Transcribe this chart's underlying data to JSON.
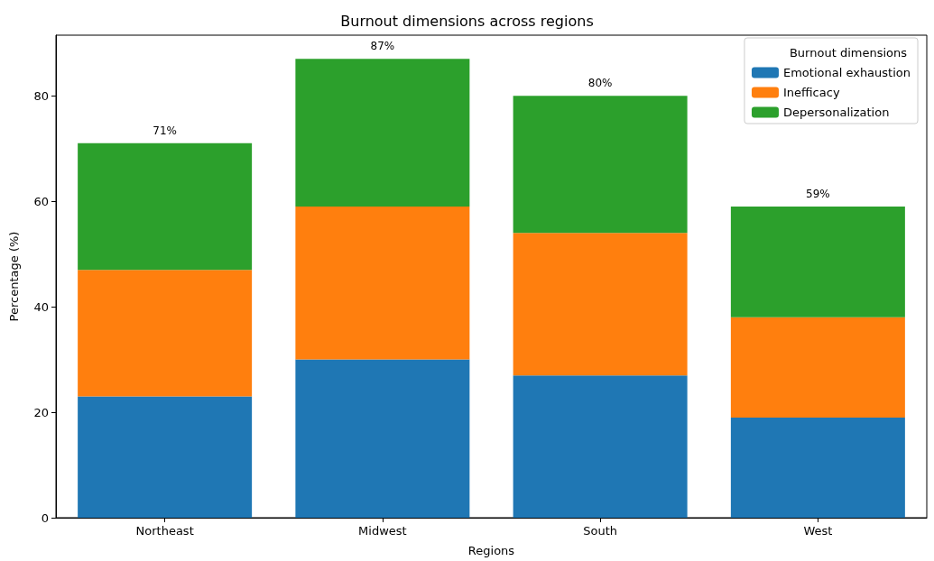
{
  "chart_data": {
    "type": "bar",
    "title": "Burnout dimensions across regions",
    "xlabel": "Regions",
    "ylabel": "Percentage (%)",
    "legend_title": "Burnout dimensions",
    "categories": [
      "Northeast",
      "Midwest",
      "South",
      "West"
    ],
    "series": [
      {
        "name": "Emotional exhaustion",
        "color": "#1f77b4",
        "values": [
          23,
          30,
          27,
          19
        ]
      },
      {
        "name": "Inefficacy",
        "color": "#ff7f0e",
        "values": [
          24,
          29,
          27,
          19
        ]
      },
      {
        "name": "Depersonalization",
        "color": "#2ca02c",
        "values": [
          24,
          28,
          26,
          21
        ]
      }
    ],
    "stacked": true,
    "totals": [
      "71%",
      "87%",
      "80%",
      "59%"
    ],
    "ylim": [
      0,
      91.5
    ],
    "yticks": [
      0,
      20,
      40,
      60,
      80
    ],
    "grid": false,
    "legend": "top right"
  }
}
